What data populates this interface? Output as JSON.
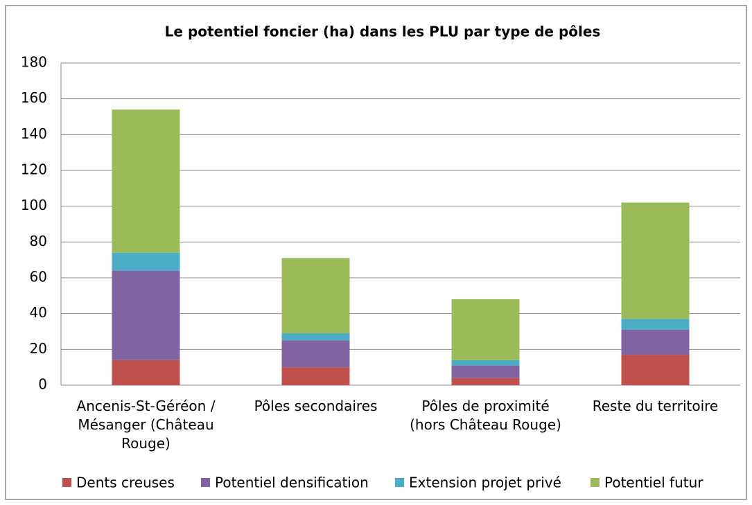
{
  "chart_data": {
    "type": "stacked_bar",
    "title": "Le potentiel foncier (ha) dans les PLU par type de pôles",
    "categories": [
      "Ancenis-St-Géréon / Mésanger (Château Rouge)",
      "Pôles secondaires",
      "Pôles de proximité (hors Château Rouge)",
      "Reste du territoire"
    ],
    "series": [
      {
        "name": "Dents creuses",
        "color": "#c0504d",
        "values": [
          14,
          10,
          4,
          17
        ]
      },
      {
        "name": "Potentiel densification",
        "color": "#8064a2",
        "values": [
          50,
          15,
          7,
          14
        ]
      },
      {
        "name": "Extension projet privé",
        "color": "#4bacc6",
        "values": [
          10,
          4,
          3,
          6
        ]
      },
      {
        "name": "Potentiel futur",
        "color": "#9bbb59",
        "values": [
          80,
          42,
          34,
          65
        ]
      }
    ],
    "ylim": [
      0,
      180
    ],
    "yticks": [
      0,
      20,
      40,
      60,
      80,
      100,
      120,
      140,
      160,
      180
    ],
    "grid": true,
    "legend": "bottom"
  }
}
